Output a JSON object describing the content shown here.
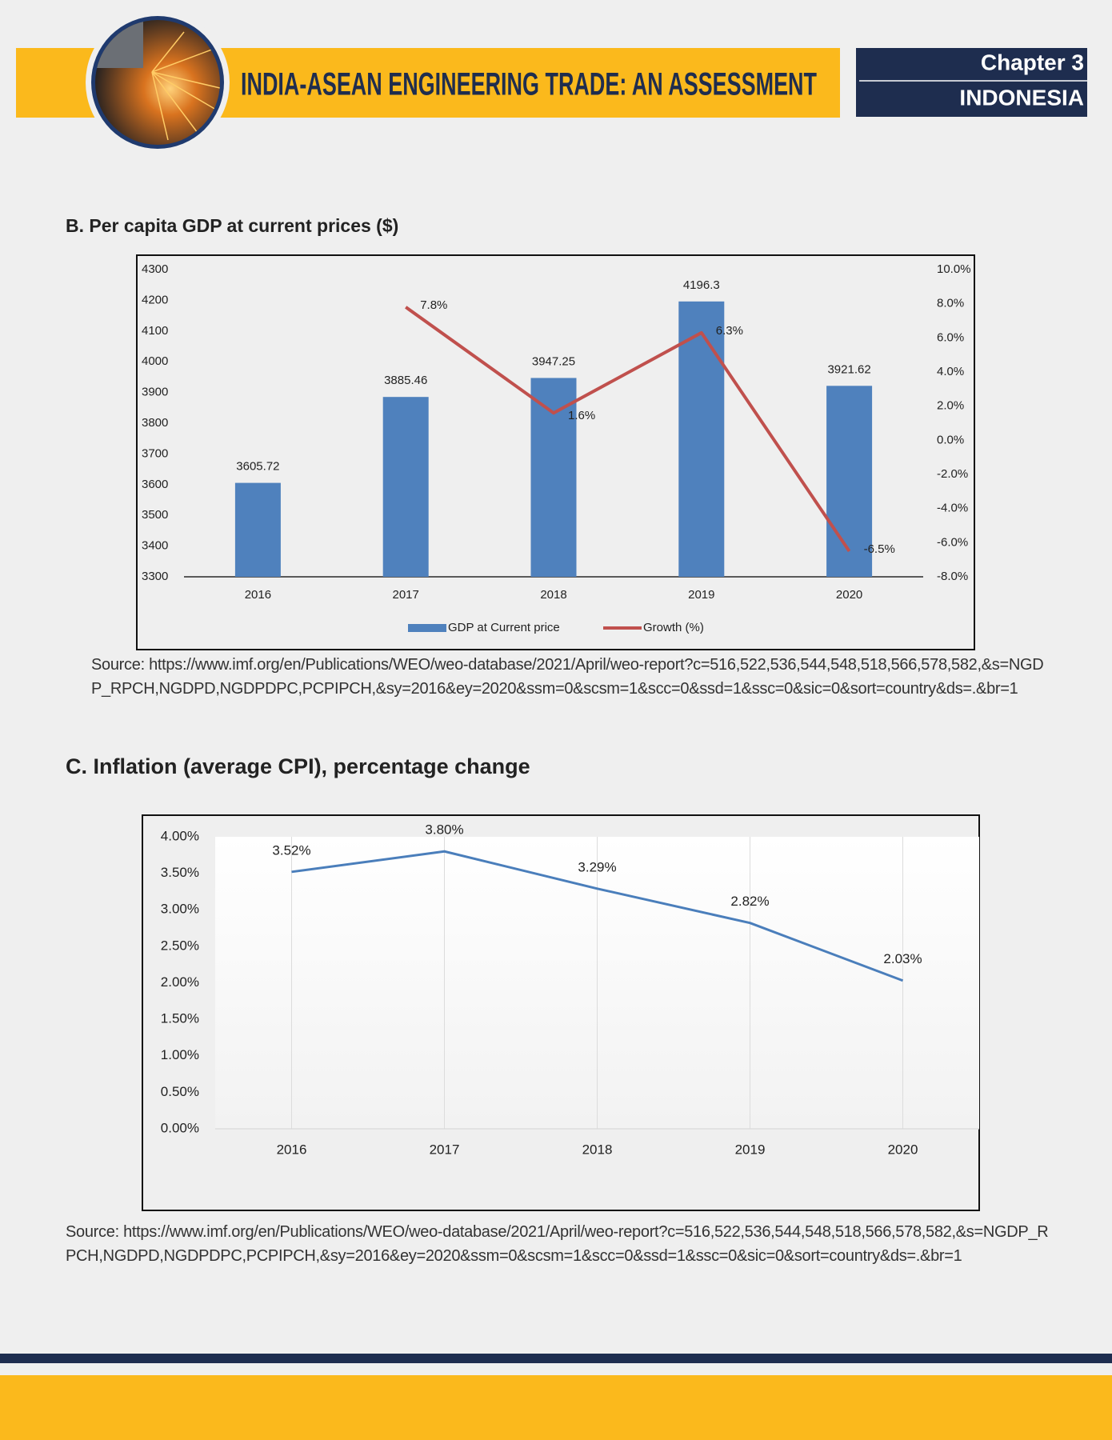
{
  "header": {
    "title": "INDIA-ASEAN ENGINEERING TRADE: AN ASSESSMENT",
    "chapter": "Chapter 3",
    "country": "INDONESIA"
  },
  "sections": [
    {
      "title": "B. Per capita GDP at current prices ($)",
      "source": "Source: https://www.imf.org/en/Publications/WEO/weo-database/2021/April/weo-report?c=516,522,536,544,548,518,566,578,582,&s=NGDP_RPCH,NGDPD,NGDPDPC,PCPIPCH,&sy=2016&ey=2020&ssm=0&scsm=1&scc=0&ssd=1&ssc=0&sic=0&sort=country&ds=.&br=1"
    },
    {
      "title": "C. Inflation (average CPI), percentage change",
      "source": "Source: https://www.imf.org/en/Publications/WEO/weo-database/2021/April/weo-report?c=516,522,536,544,548,518,566,578,582,&s=NGDP_RPCH,NGDPD,NGDPDPC,PCPIPCH,&sy=2016&ey=2020&ssm=0&scsm=1&scc=0&ssd=1&ssc=0&sic=0&sort=country&ds=.&br=1"
    }
  ],
  "chart_data": [
    {
      "type": "bar",
      "categories": [
        "2016",
        "2017",
        "2018",
        "2019",
        "2020"
      ],
      "series": [
        {
          "name": "GDP at Current price",
          "type": "bar",
          "color": "#4f81bd",
          "values": [
            3605.72,
            3885.46,
            3947.25,
            4196.3,
            3921.62
          ]
        },
        {
          "name": "Growth (%)",
          "type": "line",
          "axis": "y2",
          "color": "#c0504d",
          "values": [
            null,
            7.8,
            1.6,
            6.3,
            -6.5
          ],
          "value_labels": [
            null,
            "7.8%",
            "1.6%",
            "6.3%",
            "-6.5%"
          ]
        }
      ],
      "ylim": [
        3300,
        4300
      ],
      "yticks": [
        3300,
        3400,
        3500,
        3600,
        3700,
        3800,
        3900,
        4000,
        4100,
        4200,
        4300
      ],
      "y2lim": [
        -8,
        10
      ],
      "y2ticks": [
        {
          "value": -8,
          "label": "-8.0%"
        },
        {
          "value": -6,
          "label": "-6.0%"
        },
        {
          "value": -4,
          "label": "-4.0%"
        },
        {
          "value": -2,
          "label": "-2.0%"
        },
        {
          "value": 0,
          "label": "0.0%"
        },
        {
          "value": 2,
          "label": "2.0%"
        },
        {
          "value": 4,
          "label": "4.0%"
        },
        {
          "value": 6,
          "label": "6.0%"
        },
        {
          "value": 8,
          "label": "8.0%"
        },
        {
          "value": 10,
          "label": "10.0%"
        }
      ],
      "grid": false,
      "legend": "bottom"
    },
    {
      "type": "line",
      "categories": [
        "2016",
        "2017",
        "2018",
        "2019",
        "2020"
      ],
      "series": [
        {
          "name": "Inflation",
          "color": "#4a7ebb",
          "values": [
            3.52,
            3.8,
            3.29,
            2.82,
            2.03
          ],
          "value_labels": [
            "3.52%",
            "3.80%",
            "3.29%",
            "2.82%",
            "2.03%"
          ]
        }
      ],
      "ylim": [
        0,
        4
      ],
      "yticks": [
        {
          "value": 0,
          "label": "0.00%"
        },
        {
          "value": 0.5,
          "label": "0.50%"
        },
        {
          "value": 1,
          "label": "1.00%"
        },
        {
          "value": 1.5,
          "label": "1.50%"
        },
        {
          "value": 2,
          "label": "2.00%"
        },
        {
          "value": 2.5,
          "label": "2.50%"
        },
        {
          "value": 3,
          "label": "3.00%"
        },
        {
          "value": 3.5,
          "label": "3.50%"
        },
        {
          "value": 4,
          "label": "4.00%"
        }
      ],
      "grid": "x",
      "legend": "none"
    }
  ]
}
